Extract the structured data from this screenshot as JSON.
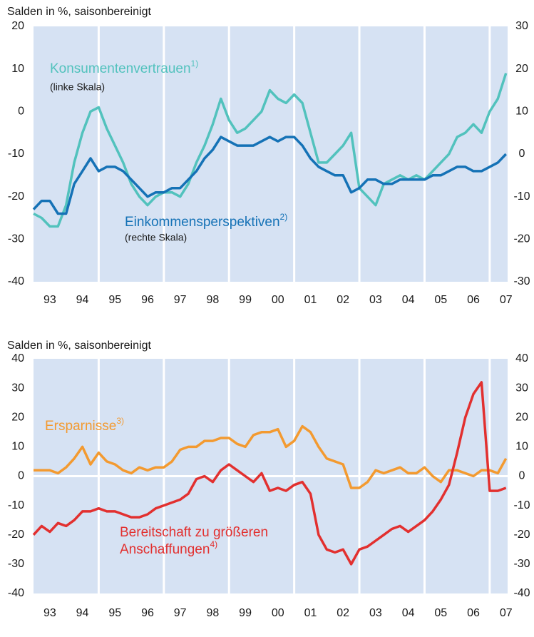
{
  "chart_data": [
    {
      "type": "line",
      "title": "Salden in %, saisonbereinigt",
      "x": [
        1993,
        1993.25,
        1993.5,
        1993.75,
        1994,
        1994.25,
        1994.5,
        1994.75,
        1995,
        1995.25,
        1995.5,
        1995.75,
        1996,
        1996.25,
        1996.5,
        1996.75,
        1997,
        1997.25,
        1997.5,
        1997.75,
        1998,
        1998.25,
        1998.5,
        1998.75,
        1999,
        1999.25,
        1999.5,
        1999.75,
        2000,
        2000.25,
        2000.5,
        2000.75,
        2001,
        2001.25,
        2001.5,
        2001.75,
        2002,
        2002.25,
        2002.5,
        2002.75,
        2003,
        2003.25,
        2003.5,
        2003.75,
        2004,
        2004.25,
        2004.5,
        2004.75,
        2005,
        2005.25,
        2005.5,
        2005.75,
        2006,
        2006.25,
        2006.5,
        2006.75,
        2007,
        2007.25,
        2007.5
      ],
      "xlim": [
        1993,
        2007.55
      ],
      "xticks": [
        {
          "value": 1993.5,
          "label": "93"
        },
        {
          "value": 1994.5,
          "label": "94"
        },
        {
          "value": 1995.5,
          "label": "95"
        },
        {
          "value": 1996.5,
          "label": "96"
        },
        {
          "value": 1997.5,
          "label": "97"
        },
        {
          "value": 1998.5,
          "label": "98"
        },
        {
          "value": 1999.5,
          "label": "99"
        },
        {
          "value": 2000.5,
          "label": "00"
        },
        {
          "value": 2001.5,
          "label": "01"
        },
        {
          "value": 2002.5,
          "label": "02"
        },
        {
          "value": 2003.5,
          "label": "03"
        },
        {
          "value": 2004.5,
          "label": "04"
        },
        {
          "value": 2005.5,
          "label": "05"
        },
        {
          "value": 2006.5,
          "label": "06"
        },
        {
          "value": 2007.5,
          "label": "07"
        }
      ],
      "xgrid": [
        1995,
        1997,
        1999,
        2001,
        2003,
        2005,
        2007
      ],
      "ylim": [
        -40,
        20
      ],
      "yticks": [
        -40,
        -30,
        -20,
        -10,
        0,
        10,
        20
      ],
      "y2lim": [
        -30,
        30
      ],
      "y2ticks": [
        -30,
        -20,
        -10,
        0,
        10,
        20,
        30
      ],
      "zero_line": false,
      "series": [
        {
          "label": [
            "Konsumentenvertrauen"
          ],
          "note": "1)",
          "sublabel": "(linke Skala)",
          "color": "#52c2bd",
          "values": [
            -24,
            -25,
            -27,
            -27,
            -22,
            -12,
            -5,
            0,
            1,
            -4,
            -8,
            -12,
            -17,
            -20,
            -22,
            -20,
            -19,
            -19,
            -20,
            -17,
            -12,
            -8,
            -3,
            3,
            -2,
            -5,
            -4,
            -2,
            0,
            5,
            3,
            2,
            4,
            2,
            -5,
            -12,
            -12,
            -10,
            -8,
            -5,
            -18,
            -20,
            -22,
            -17,
            -16,
            -15,
            -16,
            -15,
            -16,
            -14,
            -12,
            -10,
            -6,
            -5,
            -3,
            -5,
            0,
            3,
            9
          ]
        },
        {
          "label": [
            "Einkommensperspektiven"
          ],
          "note": "2)",
          "sublabel": "(rechte Skala)",
          "color": "#1572b6",
          "axis": "y2",
          "values": [
            -13,
            -11,
            -11,
            -14,
            -14,
            -7,
            -4,
            -1,
            -4,
            -3,
            -3,
            -4,
            -6,
            -8,
            -10,
            -9,
            -9,
            -8,
            -8,
            -6,
            -4,
            -1,
            1,
            4,
            3,
            2,
            2,
            2,
            3,
            4,
            3,
            4,
            4,
            2,
            -1,
            -3,
            -4,
            -5,
            -5,
            -9,
            -8,
            -6,
            -6,
            -7,
            -7,
            -6,
            -6,
            -6,
            -6,
            -5,
            -5,
            -4,
            -3,
            -3,
            -4,
            -4,
            -3,
            -2,
            0
          ]
        }
      ]
    },
    {
      "type": "line",
      "title": "Salden in %, saisonbereinigt",
      "x": [
        1993,
        1993.25,
        1993.5,
        1993.75,
        1994,
        1994.25,
        1994.5,
        1994.75,
        1995,
        1995.25,
        1995.5,
        1995.75,
        1996,
        1996.25,
        1996.5,
        1996.75,
        1997,
        1997.25,
        1997.5,
        1997.75,
        1998,
        1998.25,
        1998.5,
        1998.75,
        1999,
        1999.25,
        1999.5,
        1999.75,
        2000,
        2000.25,
        2000.5,
        2000.75,
        2001,
        2001.25,
        2001.5,
        2001.75,
        2002,
        2002.25,
        2002.5,
        2002.75,
        2003,
        2003.25,
        2003.5,
        2003.75,
        2004,
        2004.25,
        2004.5,
        2004.75,
        2005,
        2005.25,
        2005.5,
        2005.75,
        2006,
        2006.25,
        2006.5,
        2006.75,
        2007,
        2007.25,
        2007.5
      ],
      "xlim": [
        1993,
        2007.55
      ],
      "xticks": [
        {
          "value": 1993.5,
          "label": "93"
        },
        {
          "value": 1994.5,
          "label": "94"
        },
        {
          "value": 1995.5,
          "label": "95"
        },
        {
          "value": 1996.5,
          "label": "96"
        },
        {
          "value": 1997.5,
          "label": "97"
        },
        {
          "value": 1998.5,
          "label": "98"
        },
        {
          "value": 1999.5,
          "label": "99"
        },
        {
          "value": 2000.5,
          "label": "00"
        },
        {
          "value": 2001.5,
          "label": "01"
        },
        {
          "value": 2002.5,
          "label": "02"
        },
        {
          "value": 2003.5,
          "label": "03"
        },
        {
          "value": 2004.5,
          "label": "04"
        },
        {
          "value": 2005.5,
          "label": "05"
        },
        {
          "value": 2006.5,
          "label": "06"
        },
        {
          "value": 2007.5,
          "label": "07"
        }
      ],
      "xgrid": [
        1995,
        1997,
        1999,
        2001,
        2003,
        2005,
        2007
      ],
      "ylim": [
        -40,
        40
      ],
      "yticks": [
        -40,
        -30,
        -20,
        -10,
        0,
        10,
        20,
        30,
        40
      ],
      "y2lim": [
        -40,
        40
      ],
      "y2ticks": [
        -40,
        -30,
        -20,
        -10,
        0,
        10,
        20,
        30,
        40
      ],
      "zero_line": true,
      "series": [
        {
          "label": [
            "Ersparnisse"
          ],
          "note": "3)",
          "color": "#f39a30",
          "values": [
            2,
            2,
            2,
            1,
            3,
            6,
            10,
            4,
            8,
            5,
            4,
            2,
            1,
            3,
            2,
            3,
            3,
            5,
            9,
            10,
            10,
            12,
            12,
            13,
            13,
            11,
            10,
            14,
            15,
            15,
            16,
            10,
            12,
            17,
            15,
            10,
            6,
            5,
            4,
            -4,
            -4,
            -2,
            2,
            1,
            2,
            3,
            1,
            1,
            3,
            0,
            -2,
            2,
            2,
            1,
            0,
            2,
            2,
            1,
            6
          ]
        },
        {
          "label": [
            "Bereitschaft zu größeren",
            "Anschaffungen"
          ],
          "note": "4)",
          "color": "#e2302f",
          "values": [
            -20,
            -17,
            -19,
            -16,
            -17,
            -15,
            -12,
            -12,
            -11,
            -12,
            -12,
            -13,
            -14,
            -14,
            -13,
            -11,
            -10,
            -9,
            -8,
            -6,
            -1,
            0,
            -2,
            2,
            4,
            2,
            0,
            -2,
            1,
            -5,
            -4,
            -5,
            -3,
            -2,
            -6,
            -20,
            -25,
            -26,
            -25,
            -30,
            -25,
            -24,
            -22,
            -20,
            -18,
            -17,
            -19,
            -17,
            -15,
            -12,
            -8,
            -3,
            8,
            20,
            28,
            32,
            -5,
            -5,
            -4
          ]
        }
      ]
    }
  ]
}
